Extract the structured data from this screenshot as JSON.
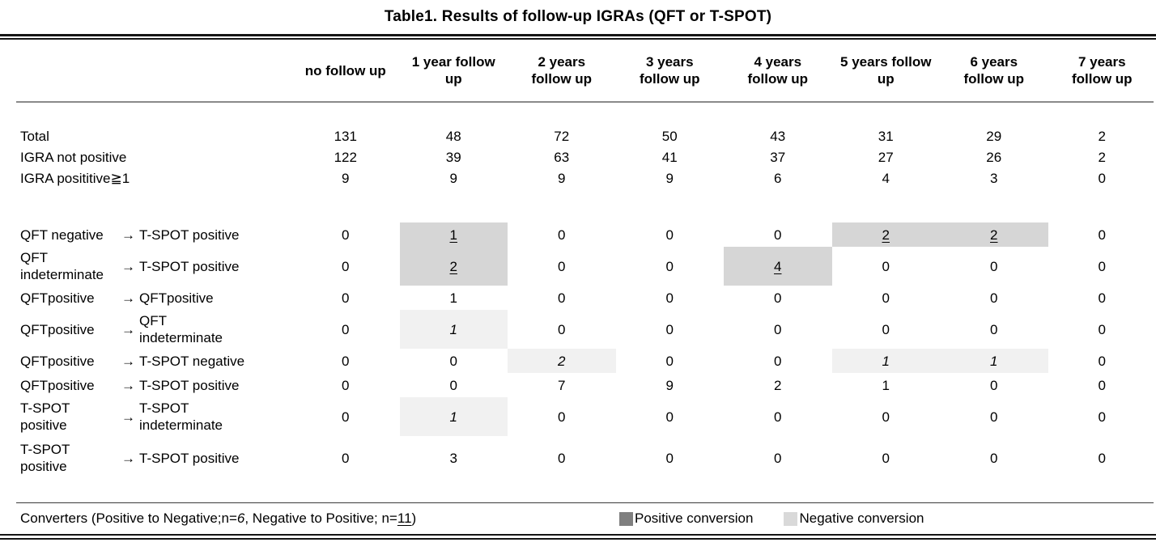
{
  "title": "Table1. Results of follow-up IGRAs (QFT or T-SPOT)",
  "table": {
    "arrow": "→",
    "columns": [
      [
        "no follow up"
      ],
      [
        "1 year follow",
        "up"
      ],
      [
        "2 years",
        "follow up"
      ],
      [
        "3 years",
        "follow up"
      ],
      [
        "4 years",
        "follow up"
      ],
      [
        "5 years follow",
        "up"
      ],
      [
        "6 years",
        "follow up"
      ],
      [
        "7 years",
        "follow up"
      ]
    ],
    "summary_rows": [
      {
        "label": "Total",
        "values": [
          "131",
          "48",
          "72",
          "50",
          "43",
          "31",
          "29",
          "2"
        ]
      },
      {
        "label": "IGRA not positive",
        "values": [
          "122",
          "39",
          "63",
          "41",
          "37",
          "27",
          "26",
          "2"
        ]
      },
      {
        "label": "IGRA posititive≧1",
        "values": [
          "9",
          "9",
          "9",
          "9",
          "6",
          "4",
          "3",
          "0"
        ]
      }
    ],
    "conversion_rows": [
      {
        "from": [
          "QFT negative"
        ],
        "to": [
          "T-SPOT positive"
        ],
        "values": [
          "0",
          "1",
          "0",
          "0",
          "0",
          "2",
          "2",
          "0"
        ],
        "marks": [
          "",
          "pos",
          "",
          "",
          "",
          "pos",
          "pos",
          ""
        ]
      },
      {
        "from": [
          "QFT",
          "indeterminate"
        ],
        "to": [
          "T-SPOT positive"
        ],
        "values": [
          "0",
          "2",
          "0",
          "0",
          "4",
          "0",
          "0",
          "0"
        ],
        "marks": [
          "",
          "pos",
          "",
          "",
          "pos",
          "",
          "",
          ""
        ]
      },
      {
        "from": [
          "QFTpositive"
        ],
        "to": [
          "QFTpositive"
        ],
        "values": [
          "0",
          "1",
          "0",
          "0",
          "0",
          "0",
          "0",
          "0"
        ],
        "marks": [
          "",
          "",
          "",
          "",
          "",
          "",
          "",
          ""
        ]
      },
      {
        "from": [
          "QFTpositive"
        ],
        "to": [
          "QFT",
          "indeterminate"
        ],
        "values": [
          "0",
          "1",
          "0",
          "0",
          "0",
          "0",
          "0",
          "0"
        ],
        "marks": [
          "",
          "neg",
          "",
          "",
          "",
          "",
          "",
          ""
        ]
      },
      {
        "from": [
          "QFTpositive"
        ],
        "to": [
          "T-SPOT negative"
        ],
        "values": [
          "0",
          "0",
          "2",
          "0",
          "0",
          "1",
          "1",
          "0"
        ],
        "marks": [
          "",
          "",
          "neg",
          "",
          "",
          "neg",
          "neg",
          ""
        ]
      },
      {
        "from": [
          "QFTpositive"
        ],
        "to": [
          "T-SPOT positive"
        ],
        "values": [
          "0",
          "0",
          "7",
          "9",
          "2",
          "1",
          "0",
          "0"
        ],
        "marks": [
          "",
          "",
          "",
          "",
          "",
          "",
          "",
          ""
        ]
      },
      {
        "from": [
          "T-SPOT",
          "positive"
        ],
        "to": [
          "T-SPOT",
          "indeterminate"
        ],
        "values": [
          "0",
          "1",
          "0",
          "0",
          "0",
          "0",
          "0",
          "0"
        ],
        "marks": [
          "",
          "neg",
          "",
          "",
          "",
          "",
          "",
          ""
        ]
      },
      {
        "from": [
          "T-SPOT",
          "positive"
        ],
        "to": [
          "T-SPOT positive"
        ],
        "values": [
          "0",
          "3",
          "0",
          "0",
          "0",
          "0",
          "0",
          "0"
        ],
        "marks": [
          "",
          "",
          "",
          "",
          "",
          "",
          "",
          ""
        ]
      }
    ]
  },
  "footer": {
    "converters_prefix": "Converters (Positive to Negative;n=",
    "n_negative": "6",
    "converters_middle": ", Negative to Positive; n=",
    "n_positive": "11",
    "converters_suffix": ")",
    "legend": [
      {
        "label": "Positive conversion",
        "swatch": "#7f7f7f"
      },
      {
        "label": "Negative conversion",
        "swatch": "#d9d9d9"
      }
    ]
  },
  "colors": {
    "positive_conversion_bg": "#d6d6d6",
    "negative_conversion_bg": "#f1f1f1"
  }
}
